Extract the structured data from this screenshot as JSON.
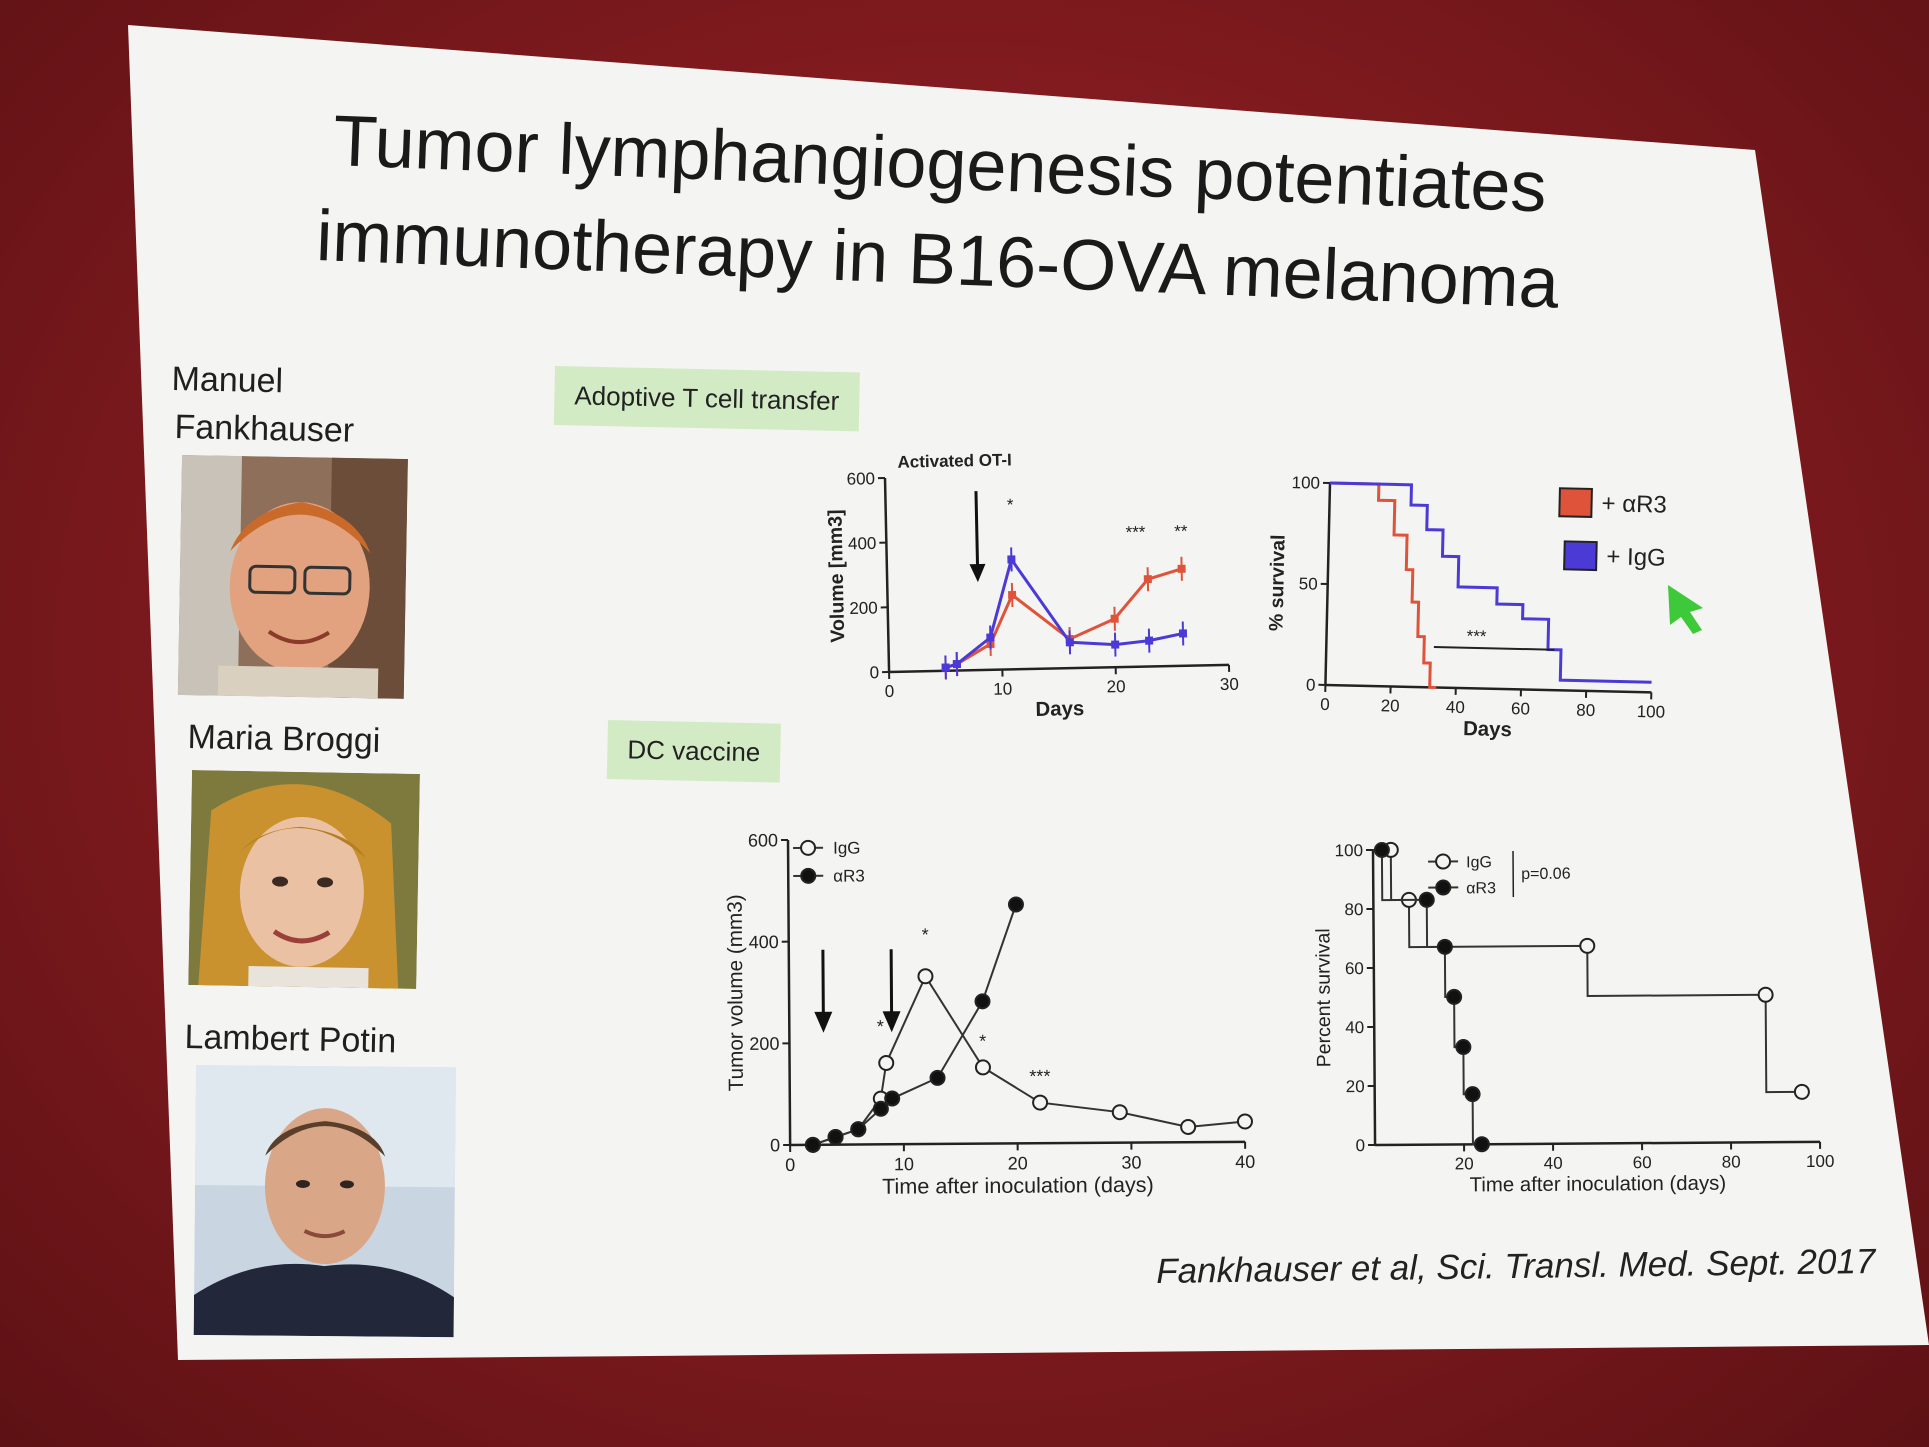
{
  "title": {
    "line1": "Tumor lymphangiogenesis potentiates",
    "line2": "immunotherapy in B16-OVA melanoma"
  },
  "authors": [
    {
      "name_line1": "Manuel",
      "name_line2": "Fankhauser"
    },
    {
      "name": "Maria Broggi"
    },
    {
      "name": "Lambert Potin"
    }
  ],
  "labels": {
    "adoptive": "Adoptive T cell transfer",
    "dc": "DC vaccine"
  },
  "citation": "Fankhauser et al, Sci. Transl. Med. Sept. 2017",
  "colors": {
    "red_series": "#e0533b",
    "blue_series": "#4b3ad6",
    "pointer": "#3ec93a",
    "label_bg": "#d3ebc5"
  },
  "chart_data": [
    {
      "type": "line",
      "xlabel": "Days",
      "ylabel": "Volume [mm3]",
      "xlim": [
        0,
        30
      ],
      "ylim": [
        0,
        600
      ],
      "xticks": [
        "0",
        "10",
        "20",
        "30"
      ],
      "yticks": [
        "0",
        "200",
        "400",
        "600"
      ],
      "annotation": "Activated OT-I",
      "arrow_x": 8,
      "significance": [
        {
          "x": 11,
          "text": "*"
        },
        {
          "x": 22,
          "text": "***"
        },
        {
          "x": 26,
          "text": "**"
        }
      ],
      "series": [
        {
          "name": "+ αR3",
          "color": "red",
          "x": [
            5,
            6,
            9,
            11,
            16,
            20,
            23,
            26
          ],
          "y": [
            10,
            20,
            80,
            230,
            90,
            150,
            270,
            300
          ]
        },
        {
          "name": "+ IgG",
          "color": "blue",
          "x": [
            5,
            6,
            9,
            11,
            16,
            20,
            23,
            26
          ],
          "y": [
            10,
            20,
            100,
            340,
            80,
            70,
            80,
            100
          ]
        }
      ]
    },
    {
      "type": "line",
      "xlabel": "Days",
      "ylabel": "% survival",
      "xlim": [
        0,
        100
      ],
      "ylim": [
        0,
        100
      ],
      "xticks": [
        "0",
        "20",
        "40",
        "60",
        "80",
        "100"
      ],
      "yticks": [
        "0",
        "50",
        "100"
      ],
      "legend": [
        "+ αR3",
        "+ IgG"
      ],
      "significance_text": "***",
      "series": [
        {
          "name": "+ αR3",
          "color": "red",
          "x": [
            0,
            15,
            15,
            20,
            20,
            24,
            24,
            26,
            26,
            28,
            28,
            30,
            30,
            32,
            32,
            34
          ],
          "y": [
            100,
            100,
            92,
            92,
            75,
            75,
            58,
            58,
            42,
            42,
            25,
            25,
            12,
            12,
            0,
            0
          ]
        },
        {
          "name": "+ IgG",
          "color": "blue",
          "x": [
            0,
            25,
            25,
            30,
            30,
            35,
            35,
            40,
            40,
            52,
            52,
            60,
            60,
            68,
            68,
            72,
            72,
            100
          ],
          "y": [
            100,
            100,
            90,
            90,
            78,
            78,
            65,
            65,
            50,
            50,
            42,
            42,
            35,
            35,
            20,
            20,
            5,
            5
          ]
        }
      ]
    },
    {
      "type": "line",
      "xlabel": "Time after inoculation (days)",
      "ylabel": "Tumor volume (mm3)",
      "xlim": [
        0,
        40
      ],
      "ylim": [
        0,
        600
      ],
      "xticks": [
        "0",
        "10",
        "20",
        "30",
        "40"
      ],
      "yticks": [
        "0",
        "200",
        "400",
        "600"
      ],
      "legend": [
        "IgG",
        "αR3"
      ],
      "significance": [
        {
          "x": 8,
          "text": "*"
        },
        {
          "x": 12,
          "text": "*"
        },
        {
          "x": 17,
          "text": "*"
        },
        {
          "x": 22,
          "text": "***"
        }
      ],
      "series": [
        {
          "name": "IgG",
          "marker": "open",
          "x": [
            2,
            4,
            6,
            8,
            8.5,
            12,
            17,
            22,
            29,
            35,
            40
          ],
          "y": [
            0,
            15,
            30,
            90,
            160,
            330,
            150,
            80,
            60,
            30,
            40
          ]
        },
        {
          "name": "αR3",
          "marker": "filled",
          "x": [
            2,
            4,
            6,
            8,
            9,
            13,
            17,
            20
          ],
          "y": [
            0,
            15,
            30,
            70,
            90,
            130,
            280,
            470
          ]
        }
      ]
    },
    {
      "type": "line",
      "xlabel": "Time after inoculation (days)",
      "ylabel": "Percent survival",
      "xlim": [
        0,
        100
      ],
      "ylim": [
        0,
        100
      ],
      "xticks": [
        "20",
        "40",
        "60",
        "80",
        "100"
      ],
      "yticks": [
        "0",
        "20",
        "40",
        "60",
        "80",
        "100"
      ],
      "legend": [
        "IgG",
        "αR3"
      ],
      "pvalue": "p=0.06",
      "series": [
        {
          "name": "IgG",
          "marker": "open",
          "x": [
            0,
            4,
            4,
            8,
            8,
            48,
            48,
            88,
            88,
            96
          ],
          "y": [
            100,
            100,
            83,
            83,
            67,
            67,
            50,
            50,
            17,
            17
          ]
        },
        {
          "name": "αR3",
          "marker": "filled",
          "x": [
            0,
            2,
            2,
            12,
            12,
            16,
            16,
            18,
            18,
            20,
            20,
            22,
            22,
            24
          ],
          "y": [
            100,
            100,
            83,
            83,
            67,
            67,
            50,
            50,
            33,
            33,
            17,
            17,
            0,
            0
          ]
        }
      ]
    }
  ]
}
